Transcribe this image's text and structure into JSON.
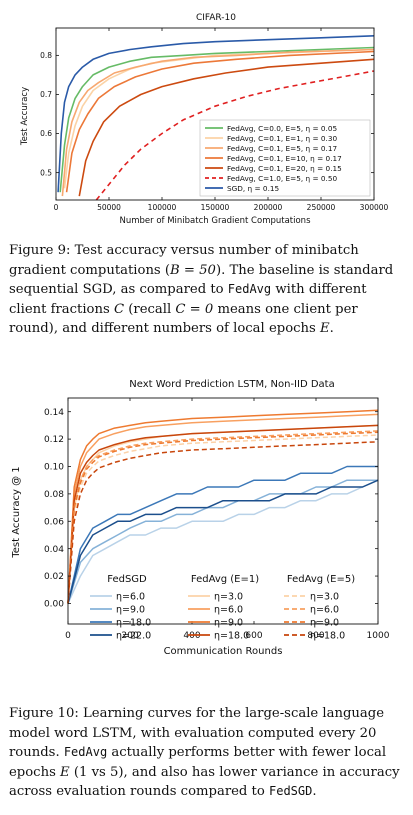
{
  "figure9": {
    "chart_data": {
      "type": "line",
      "title": "CIFAR-10",
      "xlabel": "Number of Minibatch Gradient Computations",
      "ylabel": "Test Accuracy",
      "xlim": [
        0,
        300000
      ],
      "ylim": [
        0.43,
        0.87
      ],
      "xticks": [
        0,
        50000,
        100000,
        150000,
        200000,
        250000,
        300000
      ],
      "yticks": [
        0.5,
        0.6,
        0.7,
        0.8
      ],
      "legend_position": "lower right",
      "series": [
        {
          "name": "FedAvg, C=0.0, E=5, η = 0.05",
          "color": "#66bb66",
          "dash": false,
          "x": [
            4000,
            8000,
            12000,
            18000,
            25000,
            35000,
            50000,
            70000,
            90000,
            120000,
            150000,
            200000,
            250000,
            300000
          ],
          "y": [
            0.45,
            0.57,
            0.64,
            0.69,
            0.72,
            0.75,
            0.77,
            0.785,
            0.795,
            0.8,
            0.805,
            0.81,
            0.815,
            0.82
          ]
        },
        {
          "name": "FedAvg, C=0.1, E=1, η = 0.30",
          "color": "#fbd3a6",
          "dash": false,
          "x": [
            8000,
            12000,
            18000,
            25000,
            35000,
            50000,
            70000,
            90000,
            120000,
            150000,
            200000,
            250000,
            300000
          ],
          "y": [
            0.46,
            0.55,
            0.62,
            0.67,
            0.71,
            0.74,
            0.765,
            0.78,
            0.79,
            0.8,
            0.805,
            0.81,
            0.815
          ]
        },
        {
          "name": "FedAvg, C=0.1, E=5, η = 0.17",
          "color": "#f7a870",
          "dash": false,
          "x": [
            6000,
            10000,
            15000,
            22000,
            30000,
            40000,
            55000,
            75000,
            100000,
            130000,
            170000,
            220000,
            300000
          ],
          "y": [
            0.44,
            0.56,
            0.63,
            0.68,
            0.71,
            0.73,
            0.755,
            0.77,
            0.785,
            0.795,
            0.8,
            0.808,
            0.815
          ]
        },
        {
          "name": "FedAvg, C=0.1, E=10, η = 0.17",
          "color": "#ec7838",
          "dash": false,
          "x": [
            10000,
            15000,
            22000,
            30000,
            40000,
            55000,
            75000,
            100000,
            130000,
            170000,
            220000,
            300000
          ],
          "y": [
            0.45,
            0.55,
            0.61,
            0.65,
            0.69,
            0.72,
            0.745,
            0.765,
            0.78,
            0.79,
            0.8,
            0.81
          ]
        },
        {
          "name": "FedAvg, C=0.1, E=20, η = 0.15",
          "color": "#cc4a10",
          "dash": false,
          "x": [
            22000,
            28000,
            35000,
            45000,
            60000,
            80000,
            100000,
            130000,
            160000,
            200000,
            250000,
            300000
          ],
          "y": [
            0.44,
            0.53,
            0.58,
            0.63,
            0.67,
            0.7,
            0.72,
            0.74,
            0.755,
            0.77,
            0.78,
            0.79
          ]
        },
        {
          "name": "FedAvg, C=1.0, E=5, η = 0.50",
          "color": "#e02020",
          "dash": true,
          "x": [
            38000,
            50000,
            65000,
            80000,
            100000,
            120000,
            150000,
            180000,
            210000,
            240000,
            270000,
            300000
          ],
          "y": [
            0.43,
            0.47,
            0.52,
            0.56,
            0.6,
            0.635,
            0.67,
            0.695,
            0.715,
            0.73,
            0.745,
            0.76
          ]
        },
        {
          "name": "SGD, η = 0.15",
          "color": "#2a5aa8",
          "dash": false,
          "x": [
            2000,
            5000,
            8000,
            12000,
            18000,
            25000,
            35000,
            50000,
            70000,
            90000,
            120000,
            150000,
            200000,
            250000,
            300000
          ],
          "y": [
            0.45,
            0.6,
            0.68,
            0.72,
            0.75,
            0.77,
            0.79,
            0.805,
            0.815,
            0.822,
            0.83,
            0.835,
            0.84,
            0.845,
            0.85
          ]
        }
      ]
    },
    "caption": {
      "p1": "Figure 9: Test accuracy versus number of minibatch gradient computations (",
      "math1": "B = 50",
      "p2": "). The baseline is standard sequential SGD, as compared to ",
      "mono1": "FedAvg",
      "p3": " with different client fractions ",
      "math2": "C",
      "p4": " (recall ",
      "math3": "C = 0",
      "p5": " means one client per round), and different numbers of local epochs ",
      "math4": "E",
      "p6": "."
    }
  },
  "figure10": {
    "chart_data": {
      "type": "line",
      "title": "Next Word Prediction LSTM, Non-IID Data",
      "xlabel": "Communication Rounds",
      "ylabel": "Test Accuracy @ 1",
      "xlim": [
        0,
        1000
      ],
      "ylim": [
        -0.015,
        0.15
      ],
      "xticks": [
        0,
        200,
        400,
        600,
        800,
        1000
      ],
      "yticks": [
        0.0,
        0.02,
        0.04,
        0.06,
        0.08,
        0.1,
        0.12,
        0.14
      ],
      "legend_position": "lower center",
      "legend_groups": [
        "FedSGD",
        "FedAvg (E=1)",
        "FedAvg (E=5)"
      ],
      "series": [
        {
          "group": "FedSGD",
          "name": "η=6.0",
          "color": "#b9d2e8",
          "dash": false,
          "x": [
            0,
            40,
            80,
            120,
            160,
            200,
            250,
            300,
            350,
            400,
            450,
            500,
            550,
            600,
            650,
            700,
            750,
            800,
            850,
            900,
            950,
            1000
          ],
          "y": [
            0,
            0.02,
            0.035,
            0.04,
            0.045,
            0.05,
            0.05,
            0.055,
            0.055,
            0.06,
            0.06,
            0.06,
            0.065,
            0.065,
            0.07,
            0.07,
            0.075,
            0.075,
            0.08,
            0.08,
            0.085,
            0.09
          ]
        },
        {
          "group": "FedSGD",
          "name": "η=9.0",
          "color": "#86b2d8",
          "dash": false,
          "x": [
            0,
            40,
            80,
            120,
            160,
            200,
            250,
            300,
            350,
            400,
            450,
            500,
            550,
            600,
            650,
            700,
            750,
            800,
            850,
            900,
            950,
            1000
          ],
          "y": [
            0,
            0.03,
            0.04,
            0.045,
            0.05,
            0.055,
            0.06,
            0.06,
            0.065,
            0.065,
            0.07,
            0.07,
            0.075,
            0.075,
            0.08,
            0.08,
            0.08,
            0.085,
            0.085,
            0.09,
            0.09,
            0.09
          ]
        },
        {
          "group": "FedSGD",
          "name": "η=18.0",
          "color": "#3c78b8",
          "dash": false,
          "x": [
            0,
            40,
            80,
            120,
            160,
            200,
            250,
            300,
            350,
            400,
            450,
            500,
            550,
            600,
            650,
            700,
            750,
            800,
            850,
            900,
            950,
            1000
          ],
          "y": [
            0,
            0.04,
            0.055,
            0.06,
            0.065,
            0.065,
            0.07,
            0.075,
            0.08,
            0.08,
            0.085,
            0.085,
            0.085,
            0.09,
            0.09,
            0.09,
            0.095,
            0.095,
            0.095,
            0.1,
            0.1,
            0.1
          ]
        },
        {
          "group": "FedSGD",
          "name": "η=22.0",
          "color": "#1c4f8c",
          "dash": false,
          "x": [
            0,
            40,
            80,
            120,
            160,
            200,
            250,
            300,
            350,
            400,
            450,
            500,
            550,
            600,
            650,
            700,
            750,
            800,
            850,
            900,
            950,
            1000
          ],
          "y": [
            0,
            0.035,
            0.05,
            0.055,
            0.06,
            0.06,
            0.065,
            0.065,
            0.07,
            0.07,
            0.07,
            0.075,
            0.075,
            0.075,
            0.075,
            0.08,
            0.08,
            0.08,
            0.085,
            0.085,
            0.085,
            0.09
          ]
        },
        {
          "group": "FedAvg (E=1)",
          "name": "η=3.0",
          "color": "#fcd2a8",
          "dash": false,
          "x": [
            0,
            20,
            40,
            60,
            80,
            100,
            150,
            200,
            250,
            300,
            400,
            500,
            600,
            700,
            800,
            900,
            1000
          ],
          "y": [
            0,
            0.07,
            0.09,
            0.1,
            0.105,
            0.11,
            0.115,
            0.118,
            0.12,
            0.122,
            0.124,
            0.125,
            0.126,
            0.127,
            0.128,
            0.129,
            0.13
          ]
        },
        {
          "group": "FedAvg (E=1)",
          "name": "η=6.0",
          "color": "#f8a060",
          "dash": false,
          "x": [
            0,
            20,
            40,
            60,
            80,
            100,
            150,
            200,
            250,
            300,
            400,
            500,
            600,
            700,
            800,
            900,
            1000
          ],
          "y": [
            0,
            0.08,
            0.1,
            0.11,
            0.115,
            0.12,
            0.124,
            0.127,
            0.129,
            0.13,
            0.132,
            0.133,
            0.134,
            0.135,
            0.136,
            0.137,
            0.138
          ]
        },
        {
          "group": "FedAvg (E=1)",
          "name": "η=9.0",
          "color": "#ee7a30",
          "dash": false,
          "x": [
            0,
            20,
            40,
            60,
            80,
            100,
            150,
            200,
            250,
            300,
            400,
            500,
            600,
            700,
            800,
            900,
            1000
          ],
          "y": [
            0,
            0.085,
            0.105,
            0.115,
            0.12,
            0.124,
            0.128,
            0.13,
            0.132,
            0.133,
            0.135,
            0.136,
            0.137,
            0.138,
            0.139,
            0.14,
            0.141
          ]
        },
        {
          "group": "FedAvg (E=1)",
          "name": "η=18.0",
          "color": "#c8460c",
          "dash": false,
          "x": [
            0,
            20,
            40,
            60,
            80,
            100,
            150,
            200,
            250,
            300,
            400,
            500,
            600,
            700,
            800,
            900,
            1000
          ],
          "y": [
            0,
            0.075,
            0.095,
            0.103,
            0.108,
            0.112,
            0.116,
            0.119,
            0.121,
            0.122,
            0.124,
            0.125,
            0.126,
            0.127,
            0.128,
            0.129,
            0.13
          ]
        },
        {
          "group": "FedAvg (E=5)",
          "name": "η=3.0",
          "color": "#fcd2a8",
          "dash": true,
          "x": [
            0,
            20,
            40,
            60,
            80,
            100,
            150,
            200,
            250,
            300,
            400,
            500,
            600,
            700,
            800,
            900,
            1000
          ],
          "y": [
            0,
            0.065,
            0.085,
            0.095,
            0.1,
            0.104,
            0.108,
            0.111,
            0.113,
            0.115,
            0.117,
            0.118,
            0.119,
            0.12,
            0.121,
            0.122,
            0.123
          ]
        },
        {
          "group": "FedAvg (E=5)",
          "name": "η=6.0",
          "color": "#f8a060",
          "dash": true,
          "x": [
            0,
            20,
            40,
            60,
            80,
            100,
            150,
            200,
            250,
            300,
            400,
            500,
            600,
            700,
            800,
            900,
            1000
          ],
          "y": [
            0,
            0.07,
            0.09,
            0.1,
            0.105,
            0.108,
            0.112,
            0.115,
            0.117,
            0.118,
            0.12,
            0.121,
            0.122,
            0.123,
            0.124,
            0.125,
            0.126
          ]
        },
        {
          "group": "FedAvg (E=5)",
          "name": "η=9.0",
          "color": "#ee7a30",
          "dash": true,
          "x": [
            0,
            20,
            40,
            60,
            80,
            100,
            150,
            200,
            250,
            300,
            400,
            500,
            600,
            700,
            800,
            900,
            1000
          ],
          "y": [
            0,
            0.07,
            0.088,
            0.098,
            0.103,
            0.107,
            0.111,
            0.114,
            0.116,
            0.117,
            0.119,
            0.12,
            0.121,
            0.122,
            0.123,
            0.124,
            0.125
          ]
        },
        {
          "group": "FedAvg (E=5)",
          "name": "η=18.0",
          "color": "#c8460c",
          "dash": true,
          "x": [
            0,
            20,
            40,
            60,
            80,
            100,
            150,
            200,
            250,
            300,
            400,
            500,
            600,
            700,
            800,
            900,
            1000
          ],
          "y": [
            0,
            0.06,
            0.08,
            0.09,
            0.095,
            0.099,
            0.103,
            0.106,
            0.108,
            0.11,
            0.112,
            0.113,
            0.114,
            0.115,
            0.116,
            0.117,
            0.118
          ]
        }
      ]
    },
    "caption": {
      "p1": "Figure 10: Learning curves for the large-scale language model word LSTM, with evaluation computed every 20 rounds. ",
      "mono1": "FedAvg",
      "p2": " actually performs better with fewer local epochs ",
      "math1": "E",
      "p3": " (1 vs 5), and also has lower variance in accuracy across evaluation rounds compared to ",
      "mono2": "FedSGD",
      "p4": "."
    }
  }
}
